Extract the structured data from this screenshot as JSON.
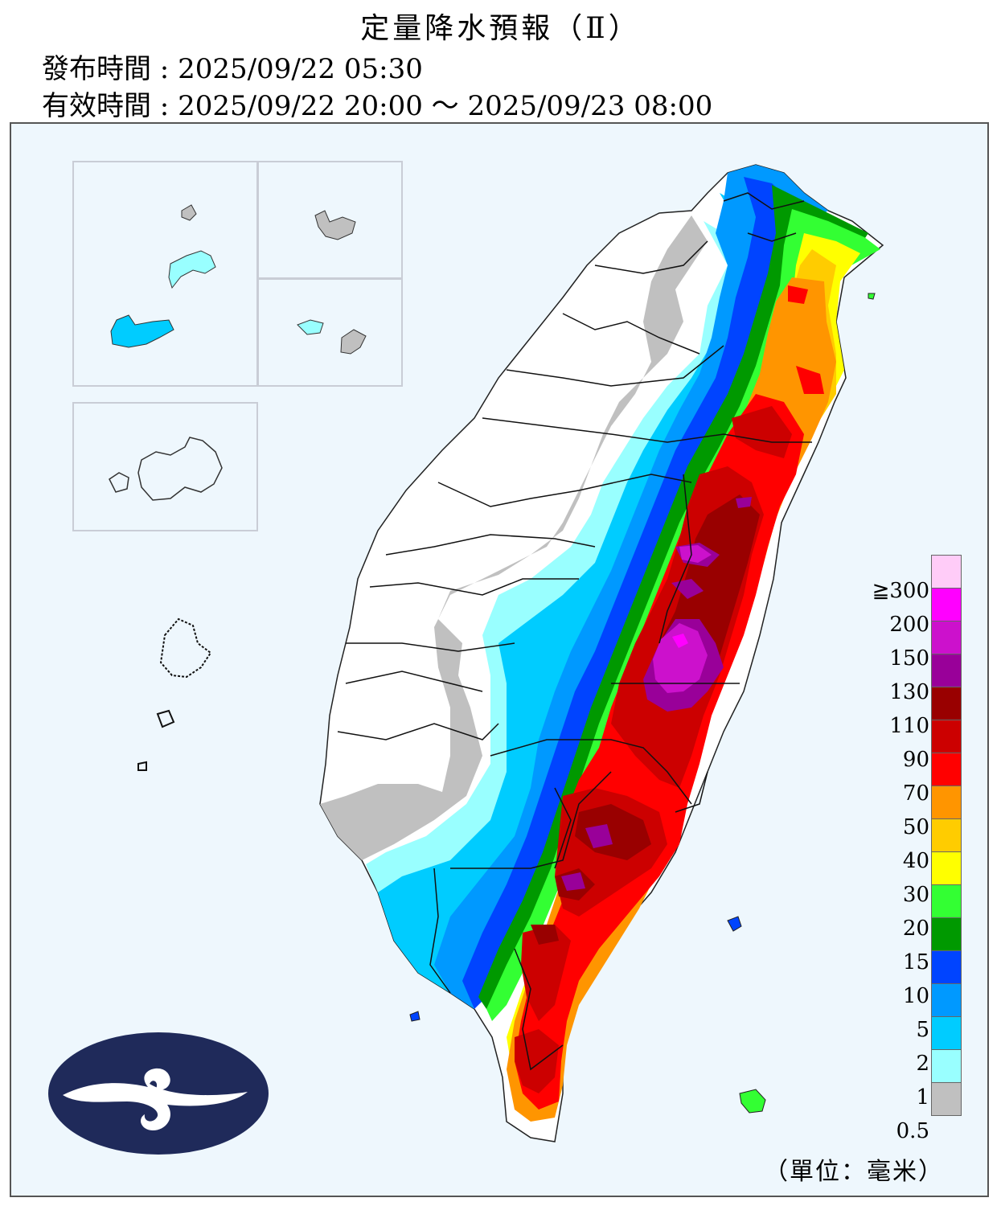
{
  "header": {
    "title": "定量降水預報（Ⅱ）",
    "issue_label": "發布時間",
    "issue_time": "2025/09/22 05:30",
    "valid_label": "有效時間",
    "valid_time": "2025/09/22 20:00 ～ 2025/09/23 08:00",
    "separator": " : "
  },
  "legend": {
    "labels": [
      "≧300",
      "200",
      "150",
      "130",
      "110",
      "90",
      "70",
      "50",
      "40",
      "30",
      "20",
      "15",
      "10",
      "5",
      "2",
      "1",
      "0.5"
    ],
    "colors": [
      "#ffccf8",
      "#ff00ff",
      "#cc11cc",
      "#990099",
      "#990000",
      "#cc0000",
      "#ff0000",
      "#ff9500",
      "#ffcc00",
      "#ffff00",
      "#33ff33",
      "#009900",
      "#0044ff",
      "#0099ff",
      "#00ccff",
      "#99ffff",
      "#c0c0c0"
    ],
    "unit": "（單位：毫米）"
  }
}
